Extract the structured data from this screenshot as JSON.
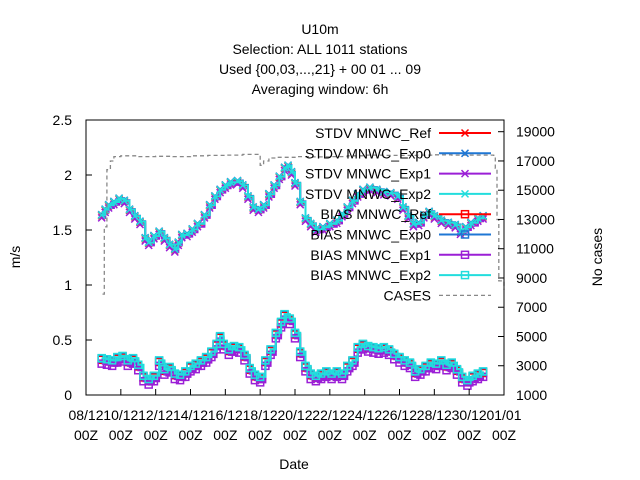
{
  "chart_data": {
    "type": "line",
    "title_lines": [
      "U10m",
      "Selection: ALL   1011 stations",
      "Used {00,03,...,21} + 00 01 ... 09",
      "Averaging window:  6h"
    ],
    "xlabel": "Date",
    "ylabel": "m/s",
    "y2label": "No cases",
    "legend_position": "top-right",
    "grid": false,
    "x_ticks": [
      {
        "label1": "08/12",
        "label2": "00Z"
      },
      {
        "label1": "10/12",
        "label2": "00Z"
      },
      {
        "label1": "12/12",
        "label2": "00Z"
      },
      {
        "label1": "14/12",
        "label2": "00Z"
      },
      {
        "label1": "16/12",
        "label2": "00Z"
      },
      {
        "label1": "18/12",
        "label2": "00Z"
      },
      {
        "label1": "20/12",
        "label2": "00Z"
      },
      {
        "label1": "22/12",
        "label2": "00Z"
      },
      {
        "label1": "24/12",
        "label2": "00Z"
      },
      {
        "label1": "26/12",
        "label2": "00Z"
      },
      {
        "label1": "28/12",
        "label2": "00Z"
      },
      {
        "label1": "30/12",
        "label2": "00Z"
      },
      {
        "label1": "01/01",
        "label2": "00Z"
      }
    ],
    "xlim_days": [
      8,
      32
    ],
    "ylim": [
      0,
      2.5
    ],
    "y_ticks": [
      "0",
      "0.5",
      "1",
      "1.5",
      "2",
      "2.5"
    ],
    "y2lim": [
      1000,
      19800
    ],
    "y2_ticks": [
      "1000",
      "3000",
      "5000",
      "7000",
      "9000",
      "11000",
      "13000",
      "15000",
      "17000",
      "19000"
    ],
    "series": [
      {
        "name": "STDV MNWC_Ref",
        "color": "#ff0000",
        "marker": "x",
        "kind": "stdv",
        "offset": 0.0
      },
      {
        "name": "STDV MNWC_Exp0",
        "color": "#1f77d4",
        "marker": "x",
        "kind": "stdv",
        "offset": 0.01
      },
      {
        "name": "STDV MNWC_Exp1",
        "color": "#9b1fd6",
        "marker": "x",
        "kind": "stdv",
        "offset": -0.02
      },
      {
        "name": "STDV MNWC_Exp2",
        "color": "#22dddd",
        "marker": "x",
        "kind": "stdv",
        "offset": 0.005
      },
      {
        "name": "BIAS MNWC_Ref",
        "color": "#ff0000",
        "marker": "square",
        "kind": "bias",
        "offset": 0.0
      },
      {
        "name": "BIAS MNWC_Exp0",
        "color": "#1f77d4",
        "marker": "square",
        "kind": "bias",
        "offset": 0.01
      },
      {
        "name": "BIAS MNWC_Exp1",
        "color": "#9b1fd6",
        "marker": "square",
        "kind": "bias",
        "offset": -0.035
      },
      {
        "name": "BIAS MNWC_Exp2",
        "color": "#22dddd",
        "marker": "square",
        "kind": "bias",
        "offset": 0.015
      },
      {
        "name": "CASES",
        "color": "#888888",
        "marker": "none",
        "kind": "cases",
        "offset": 0
      }
    ],
    "stdv_points": [
      [
        8.9,
        1.63
      ],
      [
        9.1,
        1.68
      ],
      [
        9.3,
        1.72
      ],
      [
        9.6,
        1.75
      ],
      [
        9.9,
        1.78
      ],
      [
        10.2,
        1.76
      ],
      [
        10.5,
        1.68
      ],
      [
        10.8,
        1.62
      ],
      [
        11.1,
        1.57
      ],
      [
        11.4,
        1.42
      ],
      [
        11.6,
        1.38
      ],
      [
        11.9,
        1.44
      ],
      [
        12.2,
        1.48
      ],
      [
        12.5,
        1.42
      ],
      [
        12.8,
        1.36
      ],
      [
        13.1,
        1.32
      ],
      [
        13.3,
        1.38
      ],
      [
        13.5,
        1.45
      ],
      [
        13.8,
        1.46
      ],
      [
        14.1,
        1.5
      ],
      [
        14.4,
        1.55
      ],
      [
        14.8,
        1.63
      ],
      [
        15.1,
        1.72
      ],
      [
        15.4,
        1.8
      ],
      [
        15.7,
        1.86
      ],
      [
        16.0,
        1.9
      ],
      [
        16.3,
        1.93
      ],
      [
        16.7,
        1.94
      ],
      [
        17.0,
        1.9
      ],
      [
        17.3,
        1.8
      ],
      [
        17.6,
        1.7
      ],
      [
        17.9,
        1.68
      ],
      [
        18.2,
        1.72
      ],
      [
        18.5,
        1.82
      ],
      [
        18.8,
        1.9
      ],
      [
        19.1,
        1.98
      ],
      [
        19.4,
        2.06
      ],
      [
        19.6,
        2.08
      ],
      [
        19.8,
        2.02
      ],
      [
        20.0,
        1.92
      ],
      [
        20.3,
        1.75
      ],
      [
        20.6,
        1.6
      ],
      [
        20.9,
        1.55
      ],
      [
        21.2,
        1.5
      ],
      [
        21.6,
        1.52
      ],
      [
        22.0,
        1.55
      ],
      [
        22.4,
        1.58
      ],
      [
        22.7,
        1.64
      ],
      [
        23.0,
        1.7
      ],
      [
        23.3,
        1.76
      ],
      [
        23.6,
        1.82
      ],
      [
        23.9,
        1.86
      ],
      [
        24.3,
        1.88
      ],
      [
        24.7,
        1.86
      ],
      [
        25.1,
        1.84
      ],
      [
        25.5,
        1.83
      ],
      [
        25.9,
        1.8
      ],
      [
        26.2,
        1.7
      ],
      [
        26.5,
        1.62
      ],
      [
        26.8,
        1.55
      ],
      [
        27.1,
        1.56
      ],
      [
        27.4,
        1.63
      ],
      [
        27.7,
        1.66
      ],
      [
        28.0,
        1.62
      ],
      [
        28.4,
        1.58
      ],
      [
        28.8,
        1.56
      ],
      [
        29.2,
        1.54
      ],
      [
        29.5,
        1.48
      ],
      [
        29.8,
        1.52
      ],
      [
        30.1,
        1.56
      ],
      [
        30.5,
        1.6
      ],
      [
        30.8,
        1.62
      ]
    ],
    "bias_points": [
      [
        8.9,
        0.32
      ],
      [
        9.2,
        0.31
      ],
      [
        9.5,
        0.3
      ],
      [
        9.8,
        0.33
      ],
      [
        10.1,
        0.34
      ],
      [
        10.4,
        0.3
      ],
      [
        10.7,
        0.32
      ],
      [
        11.0,
        0.26
      ],
      [
        11.3,
        0.16
      ],
      [
        11.6,
        0.13
      ],
      [
        11.9,
        0.16
      ],
      [
        12.2,
        0.3
      ],
      [
        12.5,
        0.22
      ],
      [
        12.8,
        0.24
      ],
      [
        13.1,
        0.18
      ],
      [
        13.4,
        0.17
      ],
      [
        13.7,
        0.2
      ],
      [
        14.0,
        0.25
      ],
      [
        14.3,
        0.27
      ],
      [
        14.6,
        0.3
      ],
      [
        14.9,
        0.33
      ],
      [
        15.2,
        0.38
      ],
      [
        15.5,
        0.45
      ],
      [
        15.7,
        0.52
      ],
      [
        15.9,
        0.45
      ],
      [
        16.2,
        0.4
      ],
      [
        16.5,
        0.43
      ],
      [
        16.8,
        0.42
      ],
      [
        17.1,
        0.35
      ],
      [
        17.4,
        0.23
      ],
      [
        17.7,
        0.17
      ],
      [
        18.0,
        0.15
      ],
      [
        18.3,
        0.3
      ],
      [
        18.6,
        0.4
      ],
      [
        18.9,
        0.55
      ],
      [
        19.2,
        0.65
      ],
      [
        19.4,
        0.72
      ],
      [
        19.7,
        0.68
      ],
      [
        20.0,
        0.55
      ],
      [
        20.3,
        0.38
      ],
      [
        20.6,
        0.25
      ],
      [
        20.9,
        0.18
      ],
      [
        21.2,
        0.16
      ],
      [
        21.5,
        0.18
      ],
      [
        21.8,
        0.2
      ],
      [
        22.1,
        0.18
      ],
      [
        22.4,
        0.2
      ],
      [
        22.7,
        0.18
      ],
      [
        23.0,
        0.25
      ],
      [
        23.3,
        0.3
      ],
      [
        23.6,
        0.42
      ],
      [
        23.9,
        0.45
      ],
      [
        24.2,
        0.43
      ],
      [
        24.5,
        0.42
      ],
      [
        24.8,
        0.41
      ],
      [
        25.1,
        0.42
      ],
      [
        25.4,
        0.4
      ],
      [
        25.7,
        0.36
      ],
      [
        26.0,
        0.33
      ],
      [
        26.3,
        0.3
      ],
      [
        26.6,
        0.28
      ],
      [
        26.9,
        0.2
      ],
      [
        27.2,
        0.22
      ],
      [
        27.5,
        0.25
      ],
      [
        27.8,
        0.28
      ],
      [
        28.1,
        0.27
      ],
      [
        28.4,
        0.3
      ],
      [
        28.7,
        0.26
      ],
      [
        29.0,
        0.28
      ],
      [
        29.3,
        0.22
      ],
      [
        29.6,
        0.15
      ],
      [
        29.9,
        0.12
      ],
      [
        30.2,
        0.16
      ],
      [
        30.5,
        0.18
      ],
      [
        30.8,
        0.2
      ]
    ],
    "cases_points": [
      [
        8.95,
        7900
      ],
      [
        9.05,
        12500
      ],
      [
        9.2,
        16400
      ],
      [
        9.4,
        17000
      ],
      [
        9.6,
        17300
      ],
      [
        10.0,
        17350
      ],
      [
        11.0,
        17300
      ],
      [
        12.0,
        17320
      ],
      [
        13.0,
        17300
      ],
      [
        14.0,
        17350
      ],
      [
        15.0,
        17380
      ],
      [
        16.0,
        17400
      ],
      [
        17.0,
        17450
      ],
      [
        17.8,
        17450
      ],
      [
        18.0,
        16700
      ],
      [
        18.2,
        17000
      ],
      [
        18.5,
        17200
      ],
      [
        19.0,
        17250
      ],
      [
        20.0,
        17300
      ],
      [
        21.0,
        17280
      ],
      [
        22.0,
        17300
      ],
      [
        23.0,
        17350
      ],
      [
        24.0,
        17400
      ],
      [
        25.0,
        17380
      ],
      [
        26.0,
        17380
      ],
      [
        27.0,
        17400
      ],
      [
        28.0,
        17420
      ],
      [
        29.0,
        17400
      ],
      [
        30.0,
        17400
      ],
      [
        31.0,
        17400
      ],
      [
        31.4,
        17380
      ],
      [
        31.5,
        16500
      ],
      [
        31.6,
        13000
      ],
      [
        31.7,
        8800
      ],
      [
        32.0,
        8200
      ]
    ]
  }
}
